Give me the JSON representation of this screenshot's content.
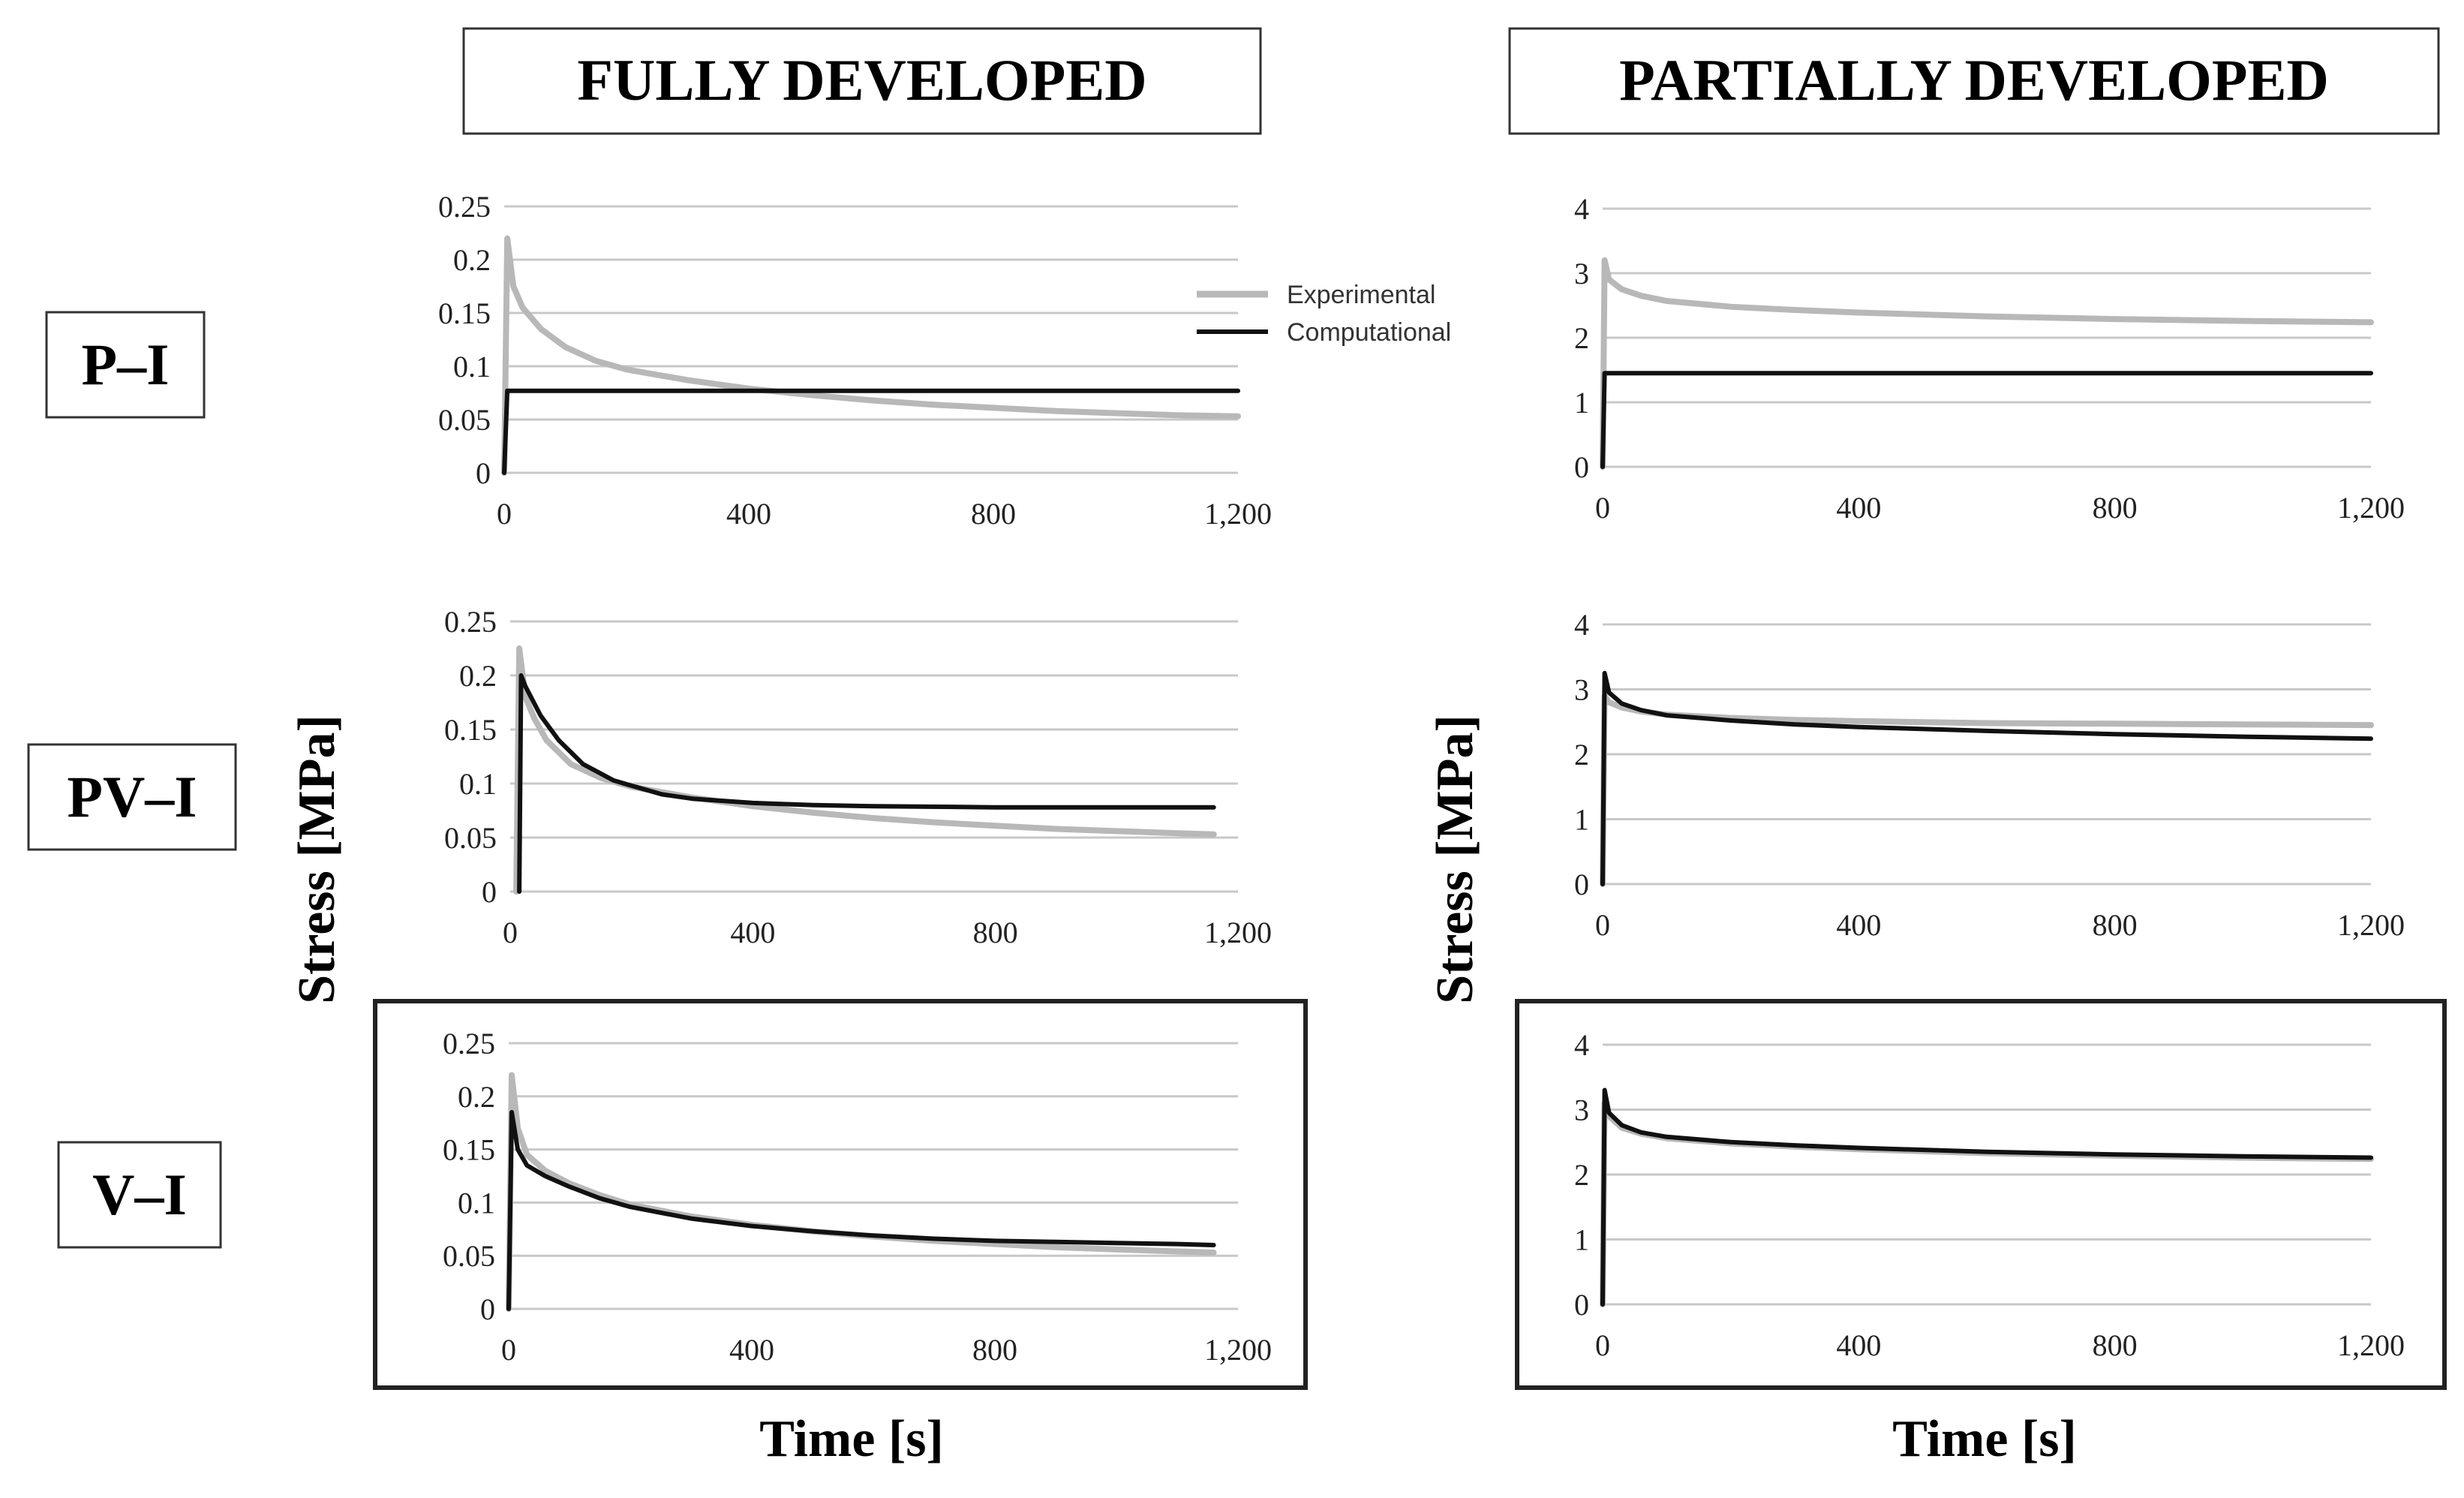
{
  "headers": {
    "col_left": "FULLY DEVELOPED",
    "col_right": "PARTIALLY DEVELOPED",
    "row_1": "P–I",
    "row_2": "PV–I",
    "row_3": "V–I"
  },
  "axes": {
    "ylabel": "Stress [MPa]",
    "xlabel": "Time [s]"
  },
  "legend": {
    "experimental": "Experimental",
    "computational": "Computational"
  },
  "colors": {
    "experimental": "#b8b8b8",
    "computational": "#111111",
    "grid": "#c8c8c8",
    "frame": "#222222"
  },
  "chart_data": [
    {
      "id": "fully-PI",
      "type": "line",
      "row": "P–I",
      "column": "FULLY DEVELOPED",
      "xlim": [
        0,
        1200
      ],
      "ylim": [
        0,
        0.25
      ],
      "xticks": [
        0,
        400,
        800,
        1200
      ],
      "xtick_labels": [
        "0",
        "400",
        "800",
        "1,200"
      ],
      "yticks": [
        0,
        0.05,
        0.1,
        0.15,
        0.2,
        0.25
      ],
      "ytick_labels": [
        "0",
        "0.05",
        "0.1",
        "0.15",
        "0.2",
        "0.25"
      ],
      "series": [
        {
          "name": "Experimental",
          "x": [
            0,
            5,
            15,
            30,
            60,
            100,
            150,
            200,
            300,
            400,
            500,
            600,
            700,
            800,
            900,
            1000,
            1100,
            1200
          ],
          "y": [
            0,
            0.22,
            0.175,
            0.155,
            0.135,
            0.118,
            0.105,
            0.097,
            0.087,
            0.079,
            0.073,
            0.068,
            0.064,
            0.061,
            0.058,
            0.056,
            0.054,
            0.053
          ]
        },
        {
          "name": "Computational",
          "x": [
            0,
            5,
            1200
          ],
          "y": [
            0,
            0.077,
            0.077
          ]
        }
      ]
    },
    {
      "id": "partial-PI",
      "type": "line",
      "row": "P–I",
      "column": "PARTIALLY DEVELOPED",
      "xlim": [
        0,
        1200
      ],
      "ylim": [
        0,
        4
      ],
      "xticks": [
        0,
        400,
        800,
        1200
      ],
      "xtick_labels": [
        "0",
        "400",
        "800",
        "1,200"
      ],
      "yticks": [
        0,
        1,
        2,
        3,
        4
      ],
      "ytick_labels": [
        "0",
        "1",
        "2",
        "3",
        "4"
      ],
      "series": [
        {
          "name": "Experimental",
          "x": [
            0,
            3,
            10,
            30,
            60,
            100,
            200,
            300,
            400,
            600,
            800,
            1000,
            1200
          ],
          "y": [
            0,
            3.2,
            2.9,
            2.75,
            2.65,
            2.57,
            2.48,
            2.43,
            2.39,
            2.33,
            2.29,
            2.26,
            2.24
          ]
        },
        {
          "name": "Computational",
          "x": [
            0,
            3,
            1200
          ],
          "y": [
            0,
            1.45,
            1.45
          ]
        }
      ]
    },
    {
      "id": "fully-PVI",
      "type": "line",
      "row": "PV–I",
      "column": "FULLY DEVELOPED",
      "xlim": [
        0,
        1200
      ],
      "ylim": [
        0,
        0.25
      ],
      "xticks": [
        0,
        400,
        800,
        1200
      ],
      "xtick_labels": [
        "0",
        "400",
        "800",
        "1,200"
      ],
      "yticks": [
        0,
        0.05,
        0.1,
        0.15,
        0.2,
        0.25
      ],
      "ytick_labels": [
        "0",
        "0.05",
        "0.1",
        "0.15",
        "0.2",
        "0.25"
      ],
      "series": [
        {
          "name": "Experimental",
          "x": [
            10,
            15,
            25,
            40,
            60,
            100,
            150,
            200,
            300,
            400,
            500,
            600,
            700,
            800,
            900,
            1000,
            1100,
            1160
          ],
          "y": [
            0,
            0.225,
            0.18,
            0.16,
            0.14,
            0.118,
            0.105,
            0.097,
            0.087,
            0.079,
            0.073,
            0.068,
            0.064,
            0.061,
            0.058,
            0.056,
            0.054,
            0.053
          ]
        },
        {
          "name": "Computational",
          "x": [
            15,
            18,
            25,
            50,
            80,
            120,
            170,
            200,
            250,
            300,
            400,
            500,
            600,
            800,
            1000,
            1160
          ],
          "y": [
            0,
            0.2,
            0.19,
            0.163,
            0.14,
            0.118,
            0.103,
            0.098,
            0.09,
            0.086,
            0.082,
            0.08,
            0.079,
            0.078,
            0.078,
            0.078
          ]
        }
      ]
    },
    {
      "id": "partial-PVI",
      "type": "line",
      "row": "PV–I",
      "column": "PARTIALLY DEVELOPED",
      "xlim": [
        0,
        1200
      ],
      "ylim": [
        0,
        4
      ],
      "xticks": [
        0,
        400,
        800,
        1200
      ],
      "xtick_labels": [
        "0",
        "400",
        "800",
        "1,200"
      ],
      "yticks": [
        0,
        1,
        2,
        3,
        4
      ],
      "ytick_labels": [
        "0",
        "1",
        "2",
        "3",
        "4"
      ],
      "series": [
        {
          "name": "Experimental",
          "x": [
            0,
            3,
            10,
            30,
            60,
            100,
            200,
            300,
            400,
            600,
            800,
            1000,
            1200
          ],
          "y": [
            0,
            2.9,
            2.8,
            2.72,
            2.66,
            2.61,
            2.56,
            2.53,
            2.51,
            2.48,
            2.47,
            2.46,
            2.45
          ]
        },
        {
          "name": "Computational",
          "x": [
            0,
            3,
            10,
            30,
            60,
            100,
            200,
            300,
            400,
            600,
            800,
            1000,
            1200
          ],
          "y": [
            0,
            3.25,
            2.95,
            2.78,
            2.68,
            2.6,
            2.52,
            2.46,
            2.42,
            2.36,
            2.31,
            2.27,
            2.24
          ]
        }
      ]
    },
    {
      "id": "fully-VI",
      "type": "line",
      "row": "V–I",
      "column": "FULLY DEVELOPED",
      "xlim": [
        0,
        1200
      ],
      "ylim": [
        0,
        0.25
      ],
      "xticks": [
        0,
        400,
        800,
        1200
      ],
      "xtick_labels": [
        "0",
        "400",
        "800",
        "1,200"
      ],
      "yticks": [
        0,
        0.05,
        0.1,
        0.15,
        0.2,
        0.25
      ],
      "ytick_labels": [
        "0",
        "0.05",
        "0.1",
        "0.15",
        "0.2",
        "0.25"
      ],
      "series": [
        {
          "name": "Experimental",
          "x": [
            0,
            5,
            15,
            30,
            60,
            100,
            150,
            200,
            300,
            400,
            500,
            600,
            700,
            800,
            900,
            1000,
            1100,
            1160
          ],
          "y": [
            0,
            0.22,
            0.17,
            0.145,
            0.13,
            0.118,
            0.107,
            0.098,
            0.087,
            0.079,
            0.073,
            0.068,
            0.064,
            0.061,
            0.058,
            0.056,
            0.054,
            0.053
          ]
        },
        {
          "name": "Computational",
          "x": [
            0,
            5,
            15,
            30,
            60,
            100,
            150,
            200,
            300,
            400,
            500,
            600,
            700,
            800,
            900,
            1000,
            1100,
            1160
          ],
          "y": [
            0,
            0.185,
            0.15,
            0.135,
            0.125,
            0.115,
            0.104,
            0.096,
            0.085,
            0.078,
            0.073,
            0.069,
            0.066,
            0.064,
            0.063,
            0.062,
            0.061,
            0.06
          ]
        }
      ]
    },
    {
      "id": "partial-VI",
      "type": "line",
      "row": "V–I",
      "column": "PARTIALLY DEVELOPED",
      "xlim": [
        0,
        1200
      ],
      "ylim": [
        0,
        4
      ],
      "xticks": [
        0,
        400,
        800,
        1200
      ],
      "xtick_labels": [
        "0",
        "400",
        "800",
        "1,200"
      ],
      "yticks": [
        0,
        1,
        2,
        3,
        4
      ],
      "ytick_labels": [
        "0",
        "1",
        "2",
        "3",
        "4"
      ],
      "series": [
        {
          "name": "Experimental",
          "x": [
            0,
            3,
            10,
            30,
            60,
            100,
            200,
            300,
            400,
            600,
            800,
            1000,
            1200
          ],
          "y": [
            0,
            3.1,
            2.9,
            2.72,
            2.63,
            2.56,
            2.48,
            2.43,
            2.39,
            2.33,
            2.29,
            2.26,
            2.24
          ]
        },
        {
          "name": "Computational",
          "x": [
            0,
            3,
            10,
            30,
            60,
            100,
            200,
            300,
            400,
            600,
            800,
            1000,
            1200
          ],
          "y": [
            0,
            3.3,
            2.95,
            2.76,
            2.65,
            2.58,
            2.5,
            2.45,
            2.41,
            2.35,
            2.31,
            2.28,
            2.26
          ]
        }
      ]
    }
  ]
}
